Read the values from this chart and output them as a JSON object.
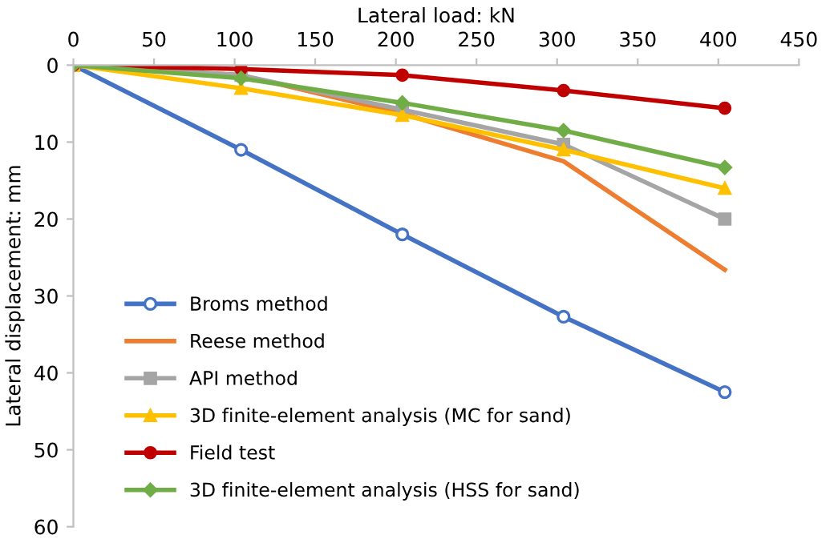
{
  "chart_data": {
    "type": "line",
    "xlabel": "Lateral load: kN",
    "ylabel": "Lateral displacement: mm",
    "xlim": [
      0,
      450
    ],
    "xticks": [
      0,
      50,
      100,
      150,
      200,
      250,
      300,
      350,
      400,
      450
    ],
    "ylim": [
      60,
      0
    ],
    "yticks": [
      0,
      10,
      20,
      30,
      40,
      50,
      60
    ],
    "grid": false,
    "legend": "bottom left",
    "series": [
      {
        "name": "Broms method",
        "color": "#4472c4",
        "marker": "open circle",
        "x": [
          0,
          104,
          204,
          304,
          404
        ],
        "values": [
          0,
          11,
          22,
          32.7,
          42.5
        ]
      },
      {
        "name": "Reese method",
        "color": "#ed7d31",
        "marker": "none",
        "x": [
          0,
          104,
          204,
          304,
          404
        ],
        "values": [
          0,
          1.3,
          6.3,
          12.5,
          26.6
        ]
      },
      {
        "name": "API method",
        "color": "#a5a5a5",
        "marker": "square",
        "x": [
          0,
          104,
          204,
          304,
          404
        ],
        "values": [
          0,
          1.3,
          5.8,
          10.3,
          20
        ]
      },
      {
        "name": "3D finite-element analysis (MC for sand)",
        "color": "#ffc000",
        "marker": "triangle",
        "x": [
          0,
          104,
          204,
          304,
          404
        ],
        "values": [
          0,
          3,
          6.5,
          11,
          16
        ]
      },
      {
        "name": "Field test",
        "color": "#c00000",
        "marker": "circle",
        "x": [
          0,
          104,
          204,
          304,
          404
        ],
        "values": [
          0,
          0.5,
          1.3,
          3.3,
          5.6
        ]
      },
      {
        "name": "3D finite-element analysis (HSS for sand)",
        "color": "#70ad47",
        "marker": "diamond",
        "x": [
          0,
          104,
          204,
          304,
          404
        ],
        "values": [
          0,
          1.7,
          4.9,
          8.5,
          13.3
        ]
      }
    ]
  }
}
